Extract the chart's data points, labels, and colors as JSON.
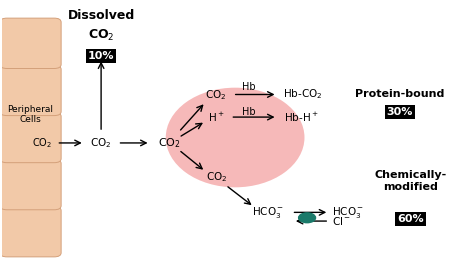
{
  "bg_color": "#ffffff",
  "cell_color": "#f2c9a8",
  "cell_border_color": "#d4a07a",
  "rbc_color": "#f08080",
  "rbc_alpha": 0.55,
  "text_color": "#000000",
  "label_bg_color": "#000000",
  "label_text_color": "#ffffff",
  "teal_dot_color": "#1a7a6a",
  "peripheral_cells_label": "Peripheral\nCells",
  "dissolved_label": "Dissolved\nCO₂",
  "protein_bound_label": "Protein-bound",
  "chemically_modified_label": "Chemically-\nmodified",
  "pct_10": "10%",
  "pct_30": "30%",
  "pct_60": "60%"
}
